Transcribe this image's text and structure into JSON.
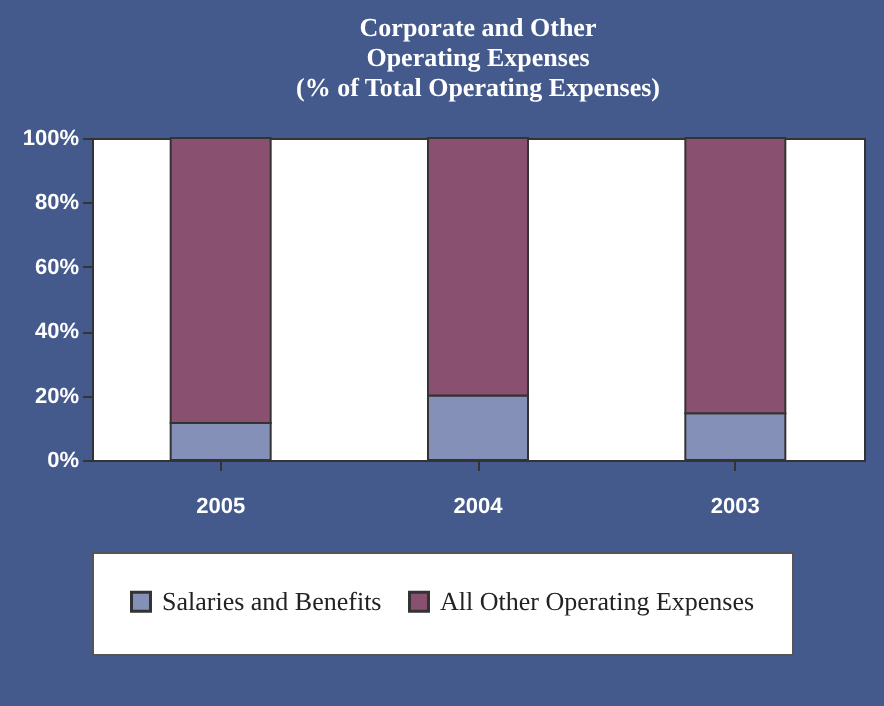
{
  "chart_data": {
    "type": "bar",
    "title": "Corporate and Other\nOperating Expenses\n(% of Total Operating Expenses)",
    "categories": [
      "2005",
      "2004",
      "2003"
    ],
    "stacked": true,
    "series": [
      {
        "name": "Salaries and Benefits",
        "color": "#8590b8",
        "values": [
          11.5,
          20,
          14.5
        ]
      },
      {
        "name": "All Other Operating Expenses",
        "color": "#8a5070",
        "values": [
          88.5,
          80,
          85.5
        ]
      }
    ],
    "ylim": [
      0,
      100
    ],
    "yticks": [
      {
        "value": 0,
        "label": "0%"
      },
      {
        "value": 20,
        "label": "20%"
      },
      {
        "value": 40,
        "label": "40%"
      },
      {
        "value": 60,
        "label": "60%"
      },
      {
        "value": 80,
        "label": "80%"
      },
      {
        "value": 100,
        "label": "100%"
      }
    ],
    "grid": false,
    "legend": "bottom"
  }
}
